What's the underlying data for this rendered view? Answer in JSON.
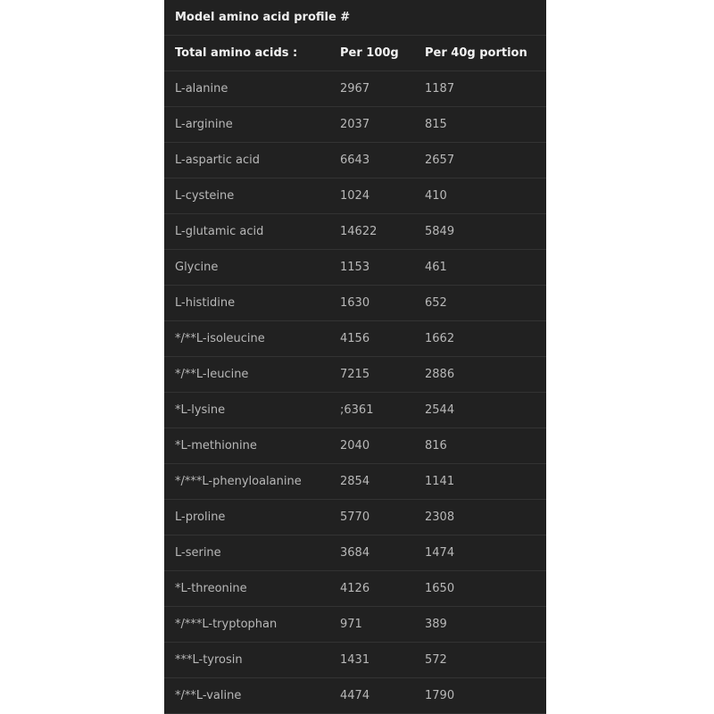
{
  "title": "Model amino acid profile #",
  "headers": [
    "Total amino acids :",
    "Per 100g",
    "Per 40g portion"
  ],
  "rows": [
    [
      "L-alanine",
      "2967",
      "1187"
    ],
    [
      "L-arginine",
      "2037",
      "815"
    ],
    [
      "L-aspartic acid",
      "6643",
      "2657"
    ],
    [
      "L-cysteine",
      "1024",
      "410"
    ],
    [
      "L-glutamic acid",
      "14622",
      "5849"
    ],
    [
      "Glycine",
      "1153",
      "461"
    ],
    [
      "L-histidine",
      "1630",
      "652"
    ],
    [
      "*/**L-isoleucine",
      "4156",
      "1662"
    ],
    [
      "*/**L-leucine",
      "7215",
      "2886"
    ],
    [
      "*L-lysine",
      ";6361",
      "2544"
    ],
    [
      "*L-methionine",
      "2040",
      "816"
    ],
    [
      "*/***L-phenyloalanine",
      "2854",
      "1141"
    ],
    [
      "L-proline",
      "5770",
      "2308"
    ],
    [
      "L-serine",
      "3684",
      "1474"
    ],
    [
      "*L-threonine",
      "4126",
      "1650"
    ],
    [
      "*/***L-tryptophan",
      "971",
      "389"
    ],
    [
      "***L-tyrosin",
      "1431",
      "572"
    ],
    [
      "*/**L-valine",
      "4474",
      "1790"
    ]
  ]
}
